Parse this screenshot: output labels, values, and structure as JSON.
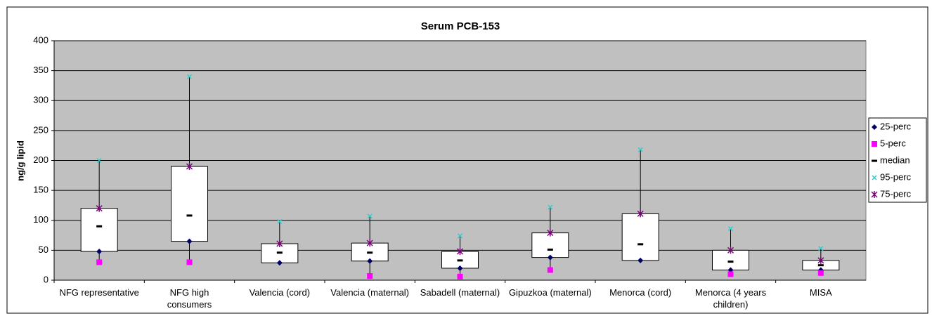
{
  "chart_data": {
    "type": "box",
    "title": "Serum PCB-153",
    "y_label": "ng/g lipid",
    "categories": [
      "NFG representative",
      "NFG high consumers",
      "Valencia (cord)",
      "Valencia (maternal)",
      "Sabadell (maternal)",
      "Gipuzkoa (maternal)",
      "Menorca (cord)",
      "Menorca (4 years children)",
      "MISA"
    ],
    "series": [
      {
        "name": "25-perc",
        "color": "#000066",
        "values": [
          48,
          65,
          29,
          32,
          20,
          38,
          33,
          17,
          17
        ]
      },
      {
        "name": "5-perc",
        "color": "#ff00ff",
        "values": [
          30,
          30,
          null,
          7,
          6,
          17,
          null,
          10,
          12
        ]
      },
      {
        "name": "median",
        "color": "#000000",
        "values": [
          90,
          108,
          46,
          46,
          33,
          51,
          60,
          31,
          25
        ]
      },
      {
        "name": "95-perc",
        "color": "#33cccc",
        "values": [
          200,
          340,
          98,
          107,
          74,
          122,
          218,
          86,
          53
        ]
      },
      {
        "name": "75-perc",
        "color": "#800080",
        "values": [
          120,
          190,
          61,
          62,
          48,
          79,
          111,
          50,
          33
        ]
      }
    ],
    "ylim": [
      0,
      400
    ],
    "yticks": [
      0,
      50,
      100,
      150,
      200,
      250,
      300,
      350,
      400
    ],
    "grid": true,
    "legend": "right"
  }
}
